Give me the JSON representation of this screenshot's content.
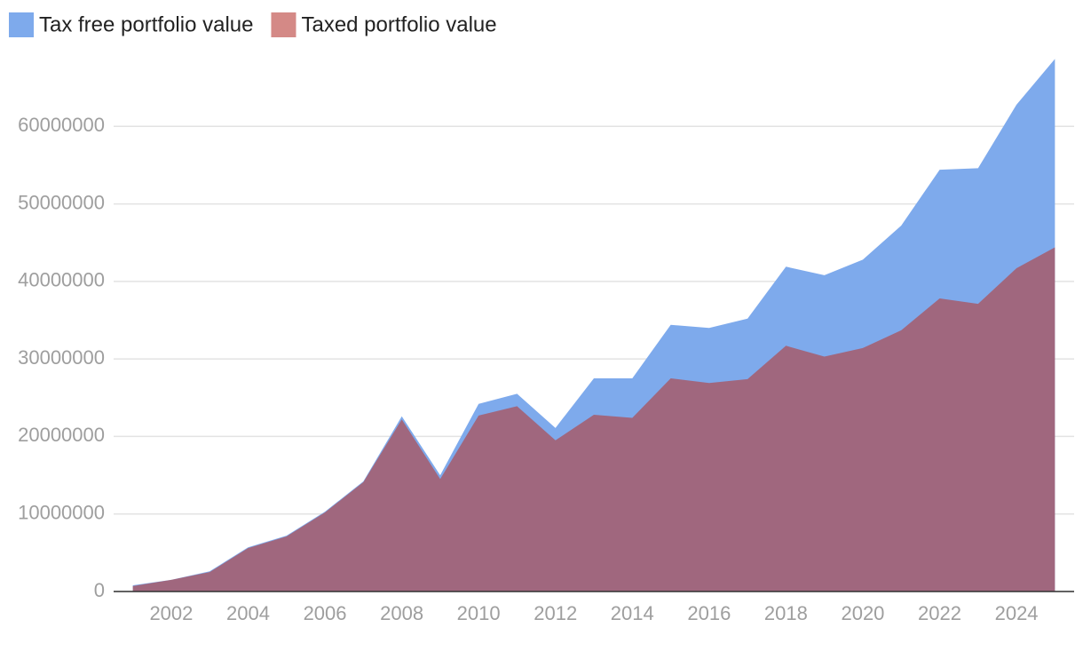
{
  "chart_data": {
    "type": "area",
    "x": [
      2001,
      2002,
      2003,
      2004,
      2005,
      2006,
      2007,
      2008,
      2009,
      2010,
      2011,
      2012,
      2013,
      2014,
      2015,
      2016,
      2017,
      2018,
      2019,
      2020,
      2021,
      2022,
      2023,
      2024,
      2025
    ],
    "series": [
      {
        "name": "Tax free portfolio value",
        "color": "#7eaaec",
        "opacity": 1,
        "values": [
          800000,
          1500000,
          2600000,
          5700000,
          7200000,
          10300000,
          14200000,
          22600000,
          15000000,
          24200000,
          25500000,
          21100000,
          27500000,
          27500000,
          34400000,
          34000000,
          35200000,
          41900000,
          40800000,
          42800000,
          47200000,
          54400000,
          54600000,
          62800000,
          68700000
        ]
      },
      {
        "name": "Taxed portfolio value",
        "color": "#b73a36",
        "opacity": 0.6,
        "values": [
          700000,
          1500000,
          2500000,
          5600000,
          7100000,
          10200000,
          14100000,
          22200000,
          14500000,
          22700000,
          23900000,
          19500000,
          22800000,
          22400000,
          27500000,
          26900000,
          27400000,
          31700000,
          30300000,
          31400000,
          33700000,
          37800000,
          37100000,
          41700000,
          44400000
        ]
      }
    ],
    "xlim": [
      2000.5,
      2025.5
    ],
    "xticks": [
      2002,
      2004,
      2006,
      2008,
      2010,
      2012,
      2014,
      2016,
      2018,
      2020,
      2022,
      2024
    ],
    "ylim": [
      0,
      70000000
    ],
    "yticks": [
      0,
      10000000,
      20000000,
      30000000,
      40000000,
      50000000,
      60000000
    ],
    "grid": true,
    "legend": "top-left"
  }
}
